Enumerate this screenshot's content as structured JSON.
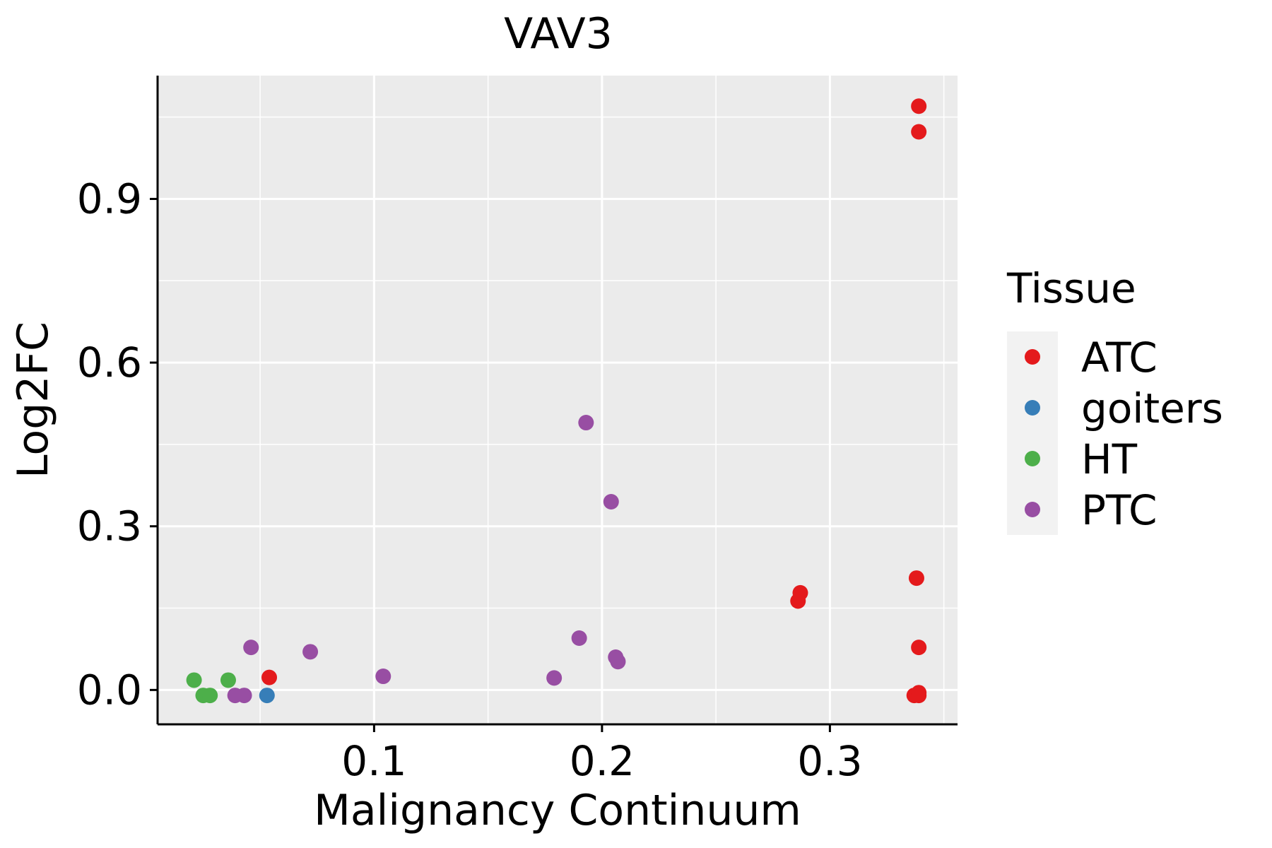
{
  "chart_data": {
    "type": "scatter",
    "title": "VAV3",
    "xlabel": "Malignancy Continuum",
    "ylabel": "Log2FC",
    "xlim": [
      0.005,
      0.356
    ],
    "ylim": [
      -0.063,
      1.126
    ],
    "x_ticks": [
      0.1,
      0.2,
      0.3
    ],
    "x_tick_labels": [
      "0.1",
      "0.2",
      "0.3"
    ],
    "y_ticks": [
      0.0,
      0.3,
      0.6,
      0.9
    ],
    "y_tick_labels": [
      "0.0",
      "0.3",
      "0.6",
      "0.9"
    ],
    "grid": true,
    "legend": {
      "title": "Tissue",
      "placement": "right"
    },
    "series": [
      {
        "name": "ATC",
        "color": "#E41A1C",
        "points": [
          [
            0.054,
            0.023
          ],
          [
            0.286,
            0.163
          ],
          [
            0.287,
            0.178
          ],
          [
            0.338,
            0.205
          ],
          [
            0.339,
            0.078
          ],
          [
            0.337,
            -0.01
          ],
          [
            0.339,
            -0.01
          ],
          [
            0.339,
            -0.005
          ],
          [
            0.339,
            1.023
          ],
          [
            0.339,
            1.07
          ]
        ]
      },
      {
        "name": "goiters",
        "color": "#377EB8",
        "points": [
          [
            0.053,
            -0.01
          ]
        ]
      },
      {
        "name": "HT",
        "color": "#4DAF4A",
        "points": [
          [
            0.021,
            0.018
          ],
          [
            0.025,
            -0.01
          ],
          [
            0.028,
            -0.01
          ],
          [
            0.036,
            0.018
          ]
        ]
      },
      {
        "name": "PTC",
        "color": "#984EA3",
        "points": [
          [
            0.039,
            -0.01
          ],
          [
            0.043,
            -0.01
          ],
          [
            0.046,
            0.078
          ],
          [
            0.072,
            0.07
          ],
          [
            0.104,
            0.025
          ],
          [
            0.179,
            0.022
          ],
          [
            0.19,
            0.095
          ],
          [
            0.193,
            0.49
          ],
          [
            0.204,
            0.345
          ],
          [
            0.206,
            0.06
          ],
          [
            0.207,
            0.052
          ]
        ]
      }
    ]
  }
}
